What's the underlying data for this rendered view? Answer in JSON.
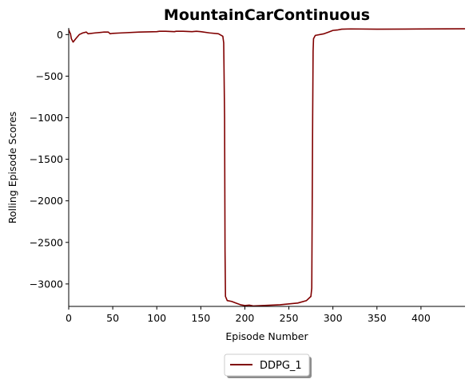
{
  "chart_data": {
    "type": "line",
    "title": "MountainCarContinuous",
    "xlabel": "Episode Number",
    "ylabel": "Rolling Episode Scores",
    "xlim": [
      0,
      450
    ],
    "ylim": [
      -3270,
      80
    ],
    "xticks": [
      0,
      50,
      100,
      150,
      200,
      250,
      300,
      350,
      400
    ],
    "yticks": [
      0,
      -500,
      -1000,
      -1500,
      -2000,
      -2500,
      -3000
    ],
    "ytick_labels": [
      "0",
      "−500",
      "−1000",
      "−1500",
      "−2000",
      "−2500",
      "−3000"
    ],
    "grid": false,
    "legend_position": "bottom-center",
    "series": [
      {
        "name": "DDPG_1",
        "color": "#800000",
        "x": [
          0,
          1,
          2,
          3,
          5,
          8,
          12,
          16,
          20,
          22,
          30,
          40,
          45,
          47,
          50,
          60,
          80,
          100,
          103,
          110,
          120,
          122,
          130,
          140,
          145,
          150,
          160,
          170,
          175,
          176,
          177,
          177.5,
          178,
          180,
          185,
          190,
          195,
          200,
          205,
          210,
          220,
          240,
          260,
          270,
          275,
          276,
          277,
          277.5,
          278,
          280,
          290,
          295,
          300,
          305,
          310,
          320,
          350,
          400,
          450
        ],
        "y": [
          60,
          30,
          10,
          -50,
          -90,
          -50,
          0,
          20,
          30,
          10,
          20,
          30,
          30,
          10,
          15,
          20,
          30,
          35,
          40,
          40,
          35,
          40,
          40,
          35,
          40,
          35,
          20,
          10,
          -20,
          -100,
          -1000,
          -2600,
          -3150,
          -3200,
          -3210,
          -3230,
          -3250,
          -3260,
          -3255,
          -3265,
          -3260,
          -3250,
          -3230,
          -3200,
          -3150,
          -3050,
          -1000,
          -200,
          -50,
          -10,
          10,
          30,
          50,
          55,
          65,
          68,
          65,
          67,
          70
        ]
      }
    ]
  }
}
